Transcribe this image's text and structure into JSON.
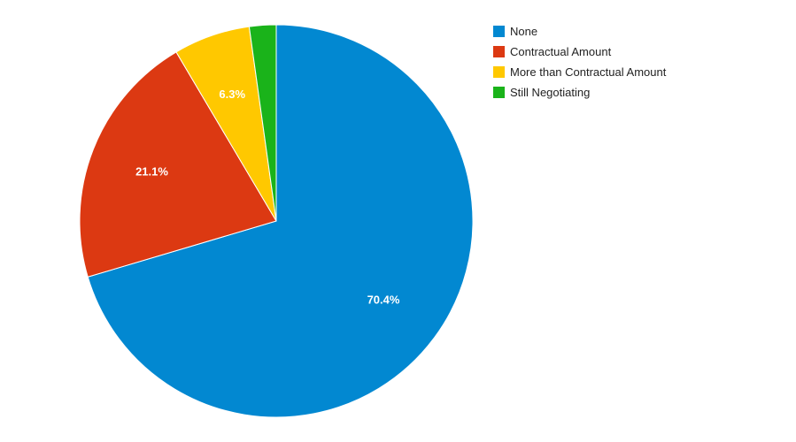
{
  "chart_data": {
    "type": "pie",
    "title": "",
    "categories": [
      "None",
      "Contractual Amount",
      "More than Contractual Amount",
      "Still Negotiating"
    ],
    "values": [
      70.4,
      21.1,
      6.3,
      2.2
    ],
    "data_labels": [
      "70.4%",
      "21.1%",
      "6.3%",
      ""
    ],
    "colors": [
      "#0288d1",
      "#dc3912",
      "#ffc800",
      "#1ab31a"
    ],
    "start_angle_deg": 0,
    "direction": "clockwise",
    "legend_position": "right-top"
  }
}
